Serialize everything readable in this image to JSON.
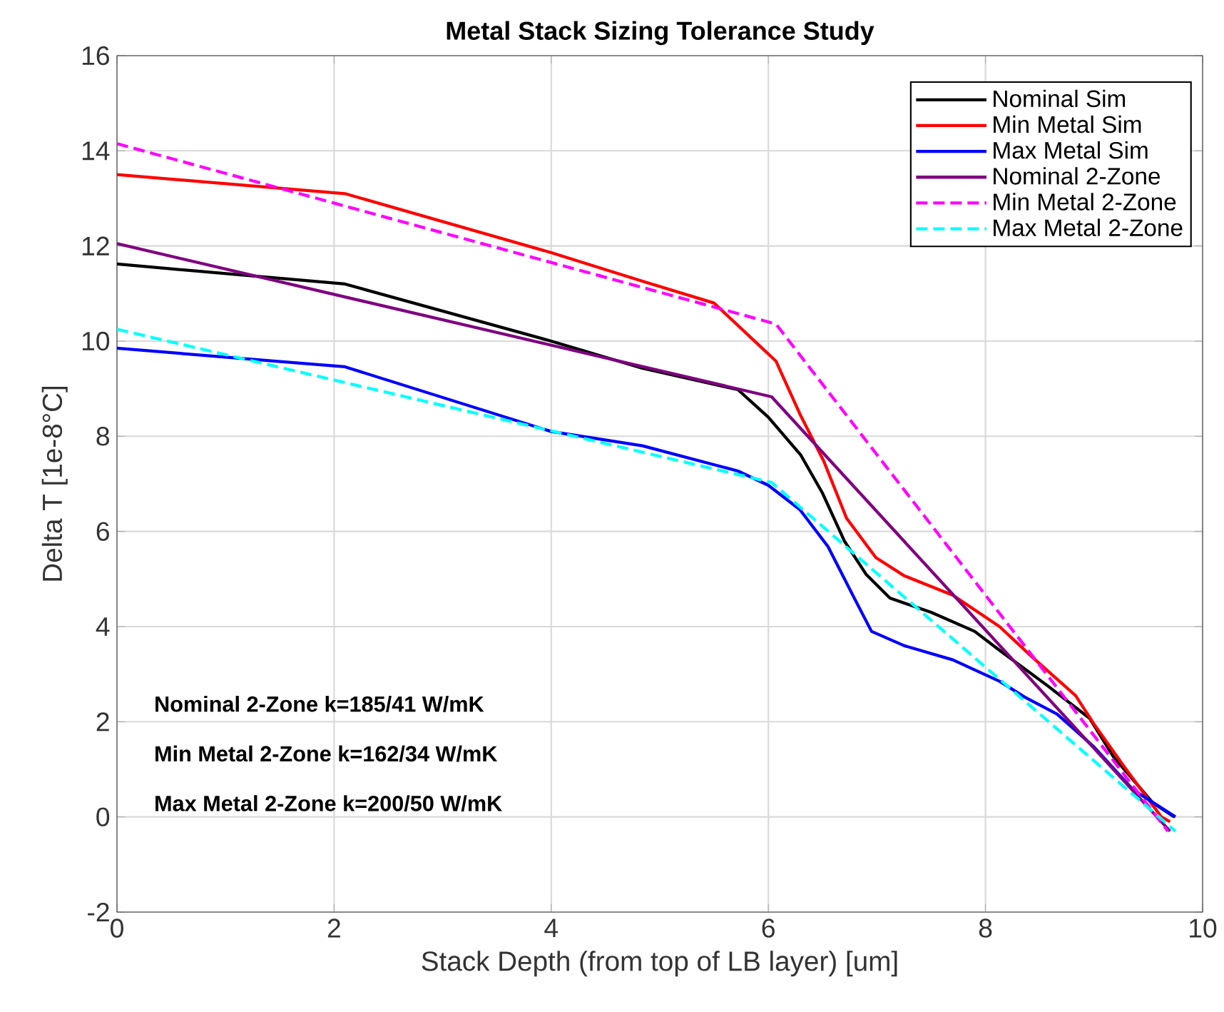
{
  "chart_data": {
    "type": "line",
    "title": "Metal Stack Sizing Tolerance Study",
    "xlabel": "Stack Depth (from top of LB layer) [um]",
    "ylabel": "Delta T [1e-8°C]",
    "xlim": [
      0,
      10
    ],
    "ylim": [
      -2,
      16
    ],
    "xticks": [
      0,
      2,
      4,
      6,
      8,
      10
    ],
    "yticks": [
      -2,
      0,
      2,
      4,
      6,
      8,
      10,
      12,
      14,
      16
    ],
    "grid": true,
    "legend": "top right",
    "series": [
      {
        "name": "Nominal Sim",
        "color": "#000000",
        "line_style": "solid",
        "x": [
          0,
          2.1,
          4.0,
          4.84,
          5.72,
          6.0,
          6.3,
          6.5,
          6.7,
          6.9,
          7.12,
          7.5,
          7.9,
          8.13,
          8.57,
          8.96,
          9.18,
          9.54,
          9.74
        ],
        "values": [
          11.62,
          11.2,
          10.0,
          9.43,
          8.98,
          8.4,
          7.6,
          6.8,
          5.8,
          5.1,
          4.6,
          4.3,
          3.9,
          3.5,
          2.76,
          2.07,
          1.26,
          0.3,
          0.0
        ]
      },
      {
        "name": "Min Metal Sim",
        "color": "#ff0000",
        "line_style": "solid",
        "x": [
          0,
          2.1,
          4.0,
          4.84,
          5.5,
          5.85,
          6.07,
          6.29,
          6.51,
          6.72,
          6.99,
          7.25,
          7.7,
          8.13,
          8.43,
          8.83,
          9.0,
          9.28,
          9.62,
          9.7
        ],
        "values": [
          13.5,
          13.1,
          11.86,
          11.26,
          10.8,
          10.05,
          9.58,
          8.47,
          7.48,
          6.28,
          5.45,
          5.07,
          4.66,
          4.0,
          3.36,
          2.55,
          1.95,
          1.05,
          0.0,
          -0.1
        ]
      },
      {
        "name": "Max Metal Sim",
        "color": "#0000ff",
        "line_style": "solid",
        "x": [
          0,
          2.1,
          4.0,
          4.84,
          5.72,
          6.0,
          6.29,
          6.55,
          6.78,
          6.95,
          7.25,
          7.7,
          8.13,
          8.36,
          8.66,
          9.0,
          9.36,
          9.75
        ],
        "values": [
          9.85,
          9.46,
          8.1,
          7.8,
          7.27,
          6.97,
          6.46,
          5.68,
          4.65,
          3.9,
          3.6,
          3.3,
          2.85,
          2.52,
          2.16,
          1.47,
          0.57,
          0.0
        ]
      },
      {
        "name": "Nominal 2-Zone",
        "color": "#800080",
        "line_style": "solid",
        "x": [
          0,
          6.03,
          9.7
        ],
        "values": [
          12.05,
          8.83,
          -0.3
        ]
      },
      {
        "name": "Min Metal 2-Zone",
        "color": "#ff00ff",
        "line_style": "dashed",
        "x": [
          0,
          6.07,
          9.68
        ],
        "values": [
          14.15,
          10.36,
          -0.3
        ]
      },
      {
        "name": "Max Metal 2-Zone",
        "color": "#00ffff",
        "line_style": "dashed",
        "x": [
          0,
          6.03,
          9.75
        ],
        "values": [
          10.25,
          7.03,
          -0.3
        ]
      }
    ],
    "annotations": [
      "Nominal 2-Zone k=185/41 W/mK",
      "Min Metal 2-Zone k=162/34 W/mK",
      "Max Metal 2-Zone k=200/50 W/mK"
    ]
  }
}
